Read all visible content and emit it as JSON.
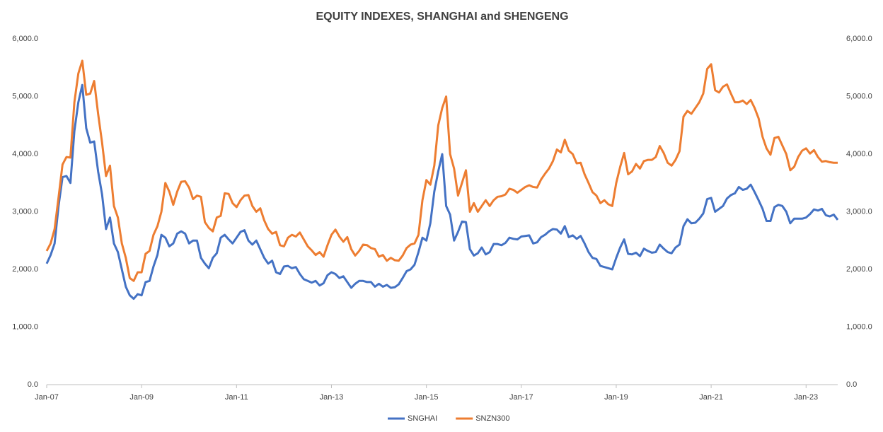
{
  "chart_data": {
    "type": "line",
    "title": "EQUITY INDEXES, SHANGHAI and SHENGENG",
    "categories": [
      "Jan-07",
      null,
      null,
      null,
      null,
      null,
      null,
      null,
      null,
      null,
      null,
      null,
      null,
      null,
      null,
      null,
      null,
      null,
      null,
      null,
      null,
      null,
      null,
      null,
      "Jan-09",
      null,
      null,
      null,
      null,
      null,
      null,
      null,
      null,
      null,
      null,
      null,
      null,
      null,
      null,
      null,
      null,
      null,
      null,
      null,
      null,
      null,
      null,
      null,
      "Jan-11",
      null,
      null,
      null,
      null,
      null,
      null,
      null,
      null,
      null,
      null,
      null,
      null,
      null,
      null,
      null,
      null,
      null,
      null,
      null,
      null,
      null,
      null,
      null,
      "Jan-13",
      null,
      null,
      null,
      null,
      null,
      null,
      null,
      null,
      null,
      null,
      null,
      null,
      null,
      null,
      null,
      null,
      null,
      null,
      null,
      null,
      null,
      null,
      null,
      "Jan-15",
      null,
      null,
      null,
      null,
      null,
      null,
      null,
      null,
      null,
      null,
      null,
      null,
      null,
      null,
      null,
      null,
      null,
      null,
      null,
      null,
      null,
      null,
      null,
      "Jan-17",
      null,
      null,
      null,
      null,
      null,
      null,
      null,
      null,
      null,
      null,
      null,
      null,
      null,
      null,
      null,
      null,
      null,
      null,
      null,
      null,
      null,
      null,
      null,
      "Jan-19",
      null,
      null,
      null,
      null,
      null,
      null,
      null,
      null,
      null,
      null,
      null,
      null,
      null,
      null,
      null,
      null,
      null,
      null,
      null,
      null,
      null,
      null,
      null,
      "Jan-21",
      null,
      null,
      null,
      null,
      null,
      null,
      null,
      null,
      null,
      null,
      null,
      null,
      null,
      null,
      null,
      null,
      null,
      null,
      null,
      null,
      null,
      null,
      null,
      "Jan-23",
      null,
      null,
      null,
      null,
      null,
      null,
      null,
      null
    ],
    "series": [
      {
        "name": "SNGHAI",
        "color": "#4472c4",
        "values": [
          2100,
          2250,
          2450,
          3100,
          3600,
          3620,
          3500,
          4400,
          4900,
          5200,
          4450,
          4200,
          4220,
          3700,
          3300,
          2700,
          2900,
          2450,
          2300,
          2000,
          1700,
          1550,
          1490,
          1570,
          1550,
          1780,
          1800,
          2050,
          2250,
          2600,
          2550,
          2400,
          2450,
          2620,
          2660,
          2620,
          2450,
          2500,
          2500,
          2200,
          2100,
          2020,
          2200,
          2280,
          2550,
          2600,
          2520,
          2450,
          2550,
          2650,
          2680,
          2500,
          2430,
          2500,
          2350,
          2200,
          2100,
          2150,
          1950,
          1920,
          2050,
          2060,
          2020,
          2040,
          1920,
          1830,
          1800,
          1770,
          1800,
          1720,
          1760,
          1900,
          1950,
          1920,
          1850,
          1880,
          1780,
          1680,
          1750,
          1800,
          1800,
          1780,
          1780,
          1700,
          1750,
          1700,
          1730,
          1680,
          1690,
          1740,
          1850,
          1970,
          2000,
          2080,
          2300,
          2550,
          2500,
          2800,
          3350,
          3700,
          4000,
          3100,
          2950,
          2500,
          2650,
          2830,
          2820,
          2350,
          2240,
          2280,
          2380,
          2260,
          2300,
          2440,
          2440,
          2420,
          2460,
          2550,
          2530,
          2520,
          2570,
          2580,
          2590,
          2450,
          2470,
          2560,
          2600,
          2660,
          2700,
          2690,
          2620,
          2750,
          2560,
          2590,
          2530,
          2580,
          2450,
          2300,
          2200,
          2180,
          2060,
          2040,
          2020,
          2000,
          2200,
          2380,
          2520,
          2270,
          2260,
          2290,
          2230,
          2360,
          2320,
          2290,
          2300,
          2430,
          2360,
          2300,
          2280,
          2380,
          2430,
          2750,
          2870,
          2800,
          2810,
          2880,
          2970,
          3220,
          3240,
          3000,
          3050,
          3100,
          3230,
          3290,
          3320,
          3430,
          3380,
          3400,
          3470,
          3340,
          3200,
          3050,
          2840,
          2840,
          3080,
          3120,
          3100,
          3000,
          2800,
          2880,
          2880,
          2880,
          2900,
          2960,
          3040,
          3020,
          3050,
          2940,
          2920,
          2950,
          2860
        ]
      },
      {
        "name": "SNZN300",
        "color": "#ed7d31",
        "values": [
          2320,
          2450,
          2700,
          3250,
          3820,
          3950,
          3940,
          4900,
          5400,
          5620,
          5030,
          5050,
          5270,
          4700,
          4200,
          3620,
          3800,
          3100,
          2900,
          2450,
          2200,
          1850,
          1800,
          1950,
          1950,
          2270,
          2320,
          2600,
          2750,
          3000,
          3500,
          3350,
          3120,
          3350,
          3520,
          3530,
          3420,
          3220,
          3280,
          3260,
          2820,
          2720,
          2660,
          2900,
          2930,
          3320,
          3310,
          3150,
          3080,
          3200,
          3280,
          3290,
          3100,
          3000,
          3060,
          2850,
          2700,
          2620,
          2650,
          2420,
          2400,
          2550,
          2600,
          2570,
          2640,
          2520,
          2400,
          2330,
          2250,
          2300,
          2220,
          2420,
          2600,
          2690,
          2570,
          2480,
          2560,
          2350,
          2240,
          2320,
          2430,
          2420,
          2370,
          2350,
          2220,
          2250,
          2150,
          2200,
          2160,
          2150,
          2240,
          2370,
          2430,
          2450,
          2600,
          3200,
          3550,
          3470,
          3800,
          4500,
          4800,
          5000,
          4000,
          3750,
          3280,
          3500,
          3720,
          3000,
          3150,
          3000,
          3100,
          3200,
          3100,
          3200,
          3260,
          3270,
          3300,
          3400,
          3380,
          3330,
          3380,
          3430,
          3460,
          3430,
          3420,
          3560,
          3660,
          3750,
          3880,
          4080,
          4030,
          4250,
          4060,
          4000,
          3840,
          3850,
          3650,
          3500,
          3340,
          3280,
          3150,
          3200,
          3130,
          3100,
          3500,
          3780,
          4020,
          3650,
          3700,
          3830,
          3750,
          3880,
          3900,
          3900,
          3950,
          4140,
          4020,
          3850,
          3800,
          3900,
          4050,
          4650,
          4750,
          4700,
          4800,
          4900,
          5050,
          5480,
          5560,
          5110,
          5070,
          5170,
          5210,
          5050,
          4900,
          4900,
          4930,
          4870,
          4940,
          4800,
          4620,
          4300,
          4100,
          3990,
          4280,
          4300,
          4150,
          4000,
          3720,
          3780,
          3950,
          4060,
          4100,
          4010,
          4070,
          3950,
          3870,
          3880,
          3860,
          3850,
          3850
        ]
      }
    ],
    "ylim": [
      0,
      6000
    ],
    "yticks": [
      {
        "value": 0,
        "label": "0.0"
      },
      {
        "value": 1000,
        "label": "1,000.0"
      },
      {
        "value": 2000,
        "label": "2,000.0"
      },
      {
        "value": 3000,
        "label": "3,000.0"
      },
      {
        "value": 4000,
        "label": "4,000.0"
      },
      {
        "value": 5000,
        "label": "5,000.0"
      },
      {
        "value": 6000,
        "label": "6,000.0"
      }
    ],
    "y2lim": [
      0,
      6000
    ],
    "y2ticks": [
      {
        "value": 0,
        "label": "0.0"
      },
      {
        "value": 1000,
        "label": "1,000.0"
      },
      {
        "value": 2000,
        "label": "2,000.0"
      },
      {
        "value": 3000,
        "label": "3,000.0"
      },
      {
        "value": 4000,
        "label": "4,000.0"
      },
      {
        "value": 5000,
        "label": "5,000.0"
      },
      {
        "value": 6000,
        "label": "6,000.0"
      }
    ],
    "legend": "bottom",
    "grid": false
  }
}
